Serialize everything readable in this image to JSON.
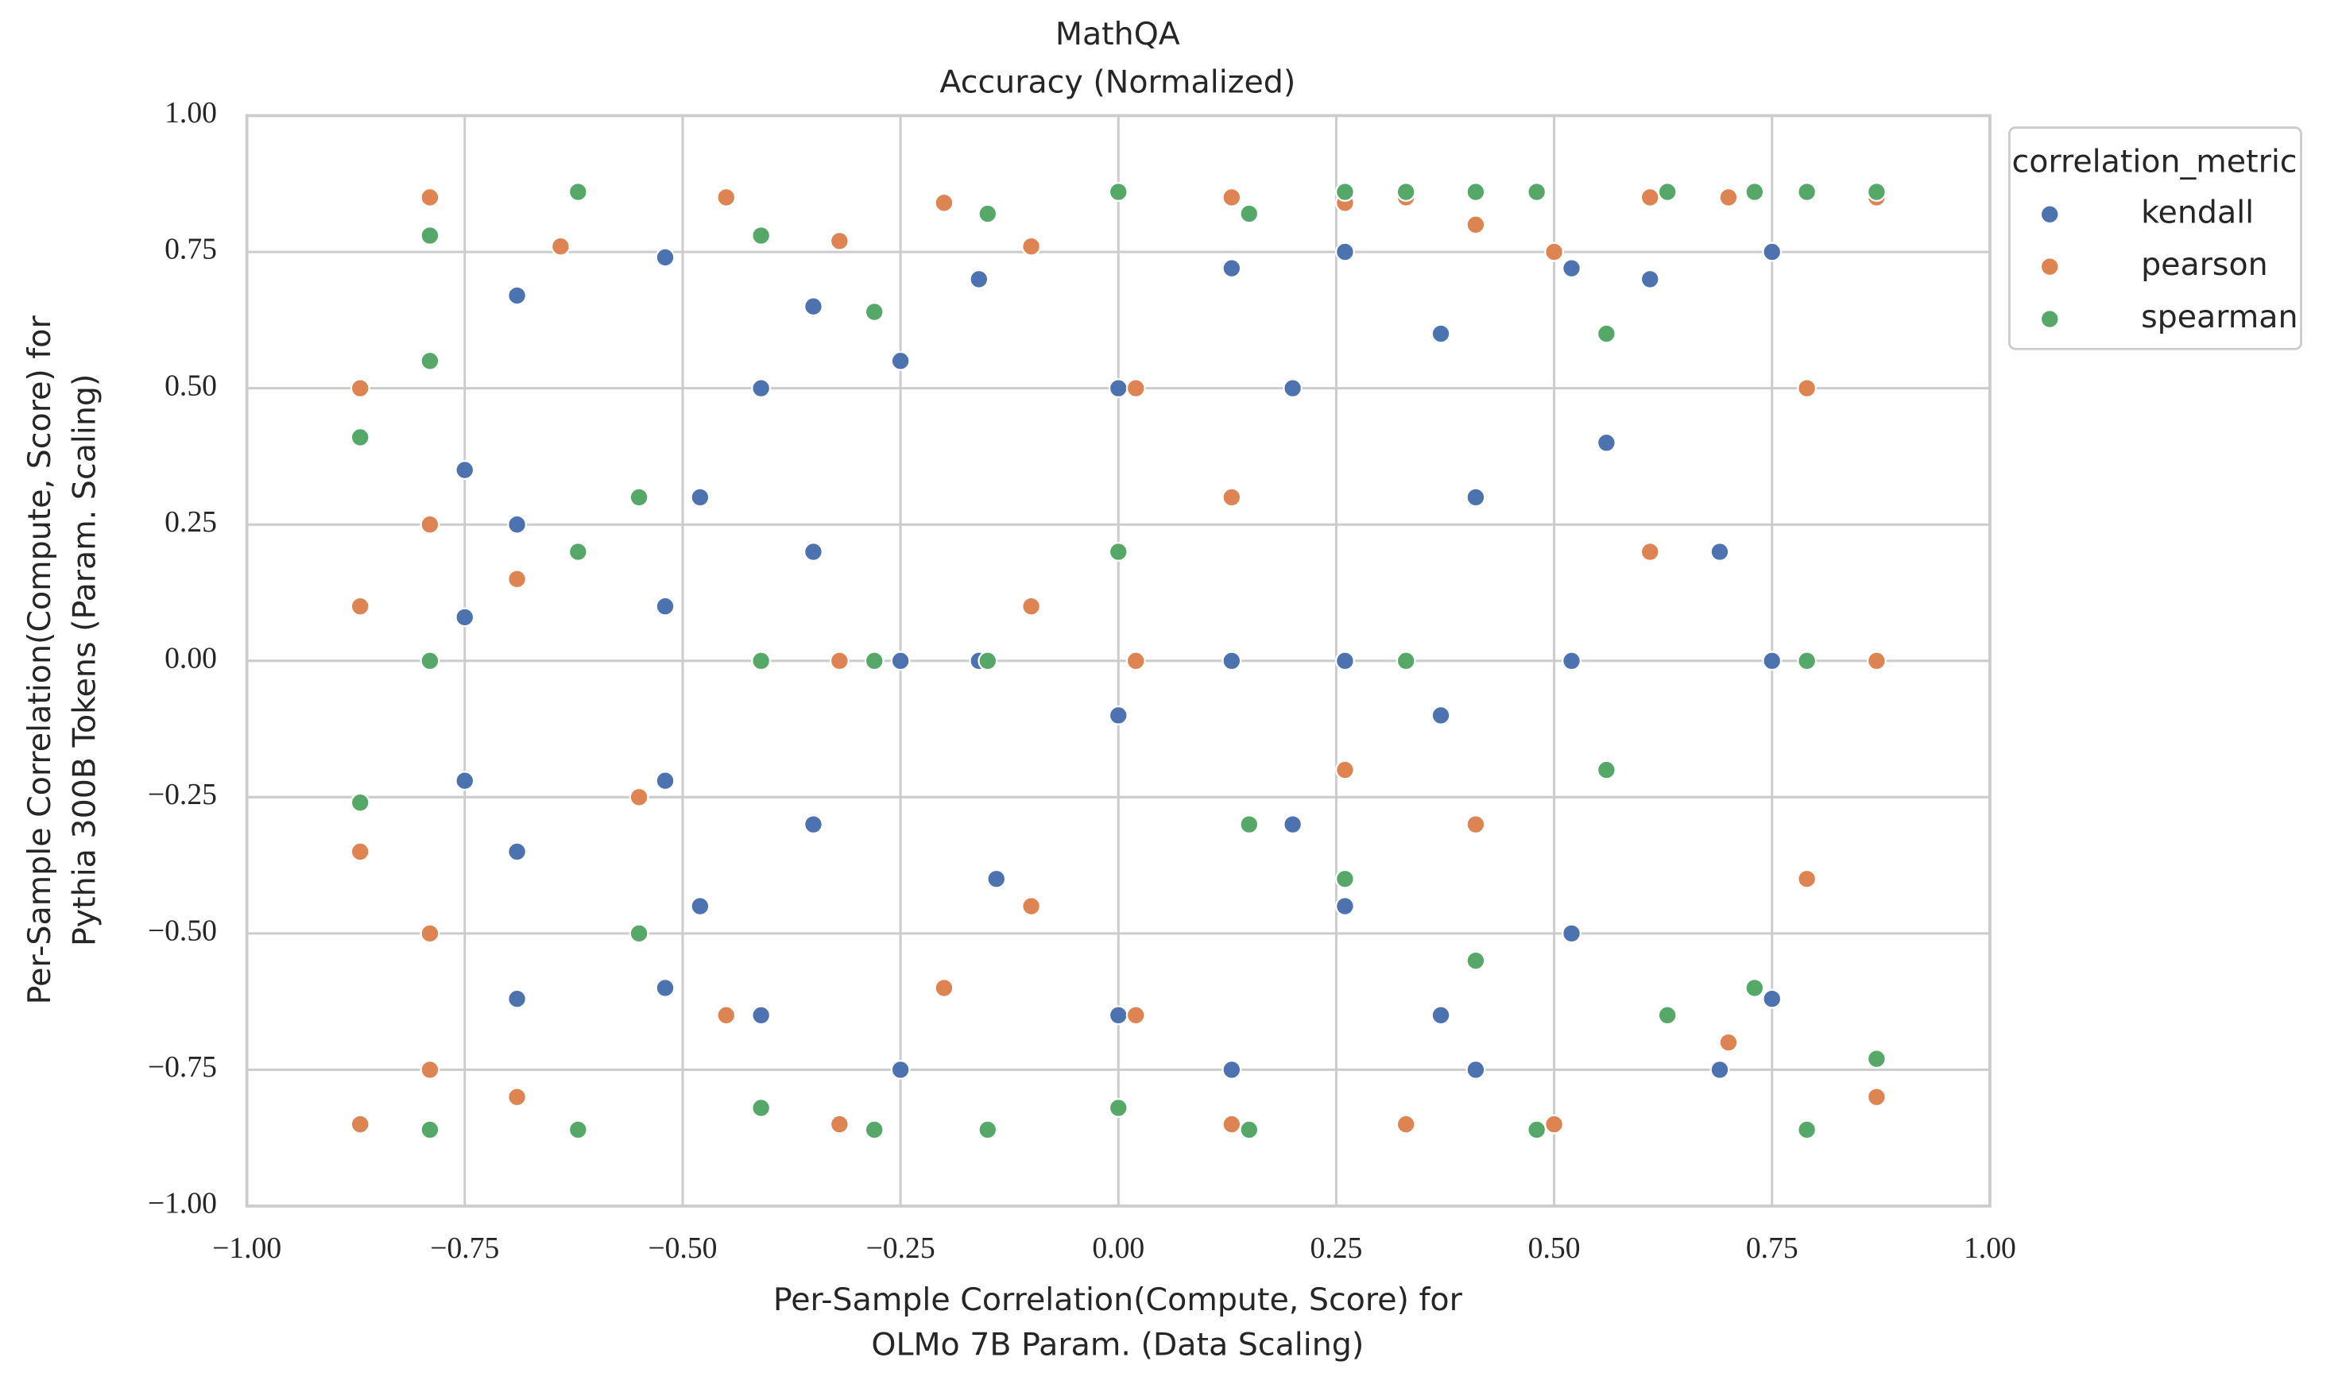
{
  "chart_data": {
    "type": "scatter",
    "title": [
      "MathQA",
      "Accuracy (Normalized)"
    ],
    "x_label": [
      "Per-Sample Correlation(Compute, Score) for",
      "OLMo 7B Param. (Data Scaling)"
    ],
    "y_label": [
      "Per-Sample Correlation(Compute, Score) for",
      "Pythia 300B Tokens (Param. Scaling)"
    ],
    "xlim": [
      -1,
      1
    ],
    "ylim": [
      -1,
      1
    ],
    "xticks": [
      {
        "value": -1,
        "label": "−1.00"
      },
      {
        "value": -0.75,
        "label": "−0.75"
      },
      {
        "value": -0.5,
        "label": "−0.50"
      },
      {
        "value": -0.25,
        "label": "−0.25"
      },
      {
        "value": 0,
        "label": "0.00"
      },
      {
        "value": 0.25,
        "label": "0.25"
      },
      {
        "value": 0.5,
        "label": "0.50"
      },
      {
        "value": 0.75,
        "label": "0.75"
      },
      {
        "value": 1,
        "label": "1.00"
      }
    ],
    "yticks": [
      {
        "value": -1,
        "label": "−1.00"
      },
      {
        "value": -0.75,
        "label": "−0.75"
      },
      {
        "value": -0.5,
        "label": "−0.50"
      },
      {
        "value": -0.25,
        "label": "−0.25"
      },
      {
        "value": 0,
        "label": "0.00"
      },
      {
        "value": 0.25,
        "label": "0.25"
      },
      {
        "value": 0.5,
        "label": "0.50"
      },
      {
        "value": 0.75,
        "label": "0.75"
      },
      {
        "value": 1,
        "label": "1.00"
      }
    ],
    "grid": true,
    "legend": {
      "title": "correlation_metric",
      "loc": "outside upper right"
    },
    "series": [
      {
        "name": "kendall",
        "color": "#4c72b0",
        "x": [
          -0.75,
          -0.75,
          -0.75,
          -0.69,
          -0.69,
          -0.69,
          -0.69,
          -0.52,
          -0.52,
          -0.52,
          -0.52,
          -0.48,
          -0.48,
          -0.41,
          -0.41,
          -0.41,
          -0.35,
          -0.35,
          -0.35,
          -0.25,
          -0.25,
          -0.25,
          -0.16,
          -0.16,
          -0.14,
          0,
          0,
          0,
          0.13,
          0.13,
          0.13,
          0.2,
          0.2,
          0.26,
          0.26,
          0.26,
          0.37,
          0.37,
          0.37,
          0.41,
          0.41,
          0.52,
          0.52,
          0.52,
          0.56,
          0.61,
          0.61,
          0.69,
          0.69,
          0.75,
          0.75,
          0.75
        ],
        "values": [
          0.35,
          0.08,
          -0.22,
          0.67,
          0.25,
          -0.35,
          -0.62,
          0.74,
          0.1,
          -0.22,
          -0.6,
          0.3,
          -0.45,
          0.5,
          0.0,
          -0.65,
          0.65,
          0.2,
          -0.3,
          0.55,
          0.0,
          -0.75,
          0.7,
          0.0,
          -0.4,
          0.5,
          -0.1,
          -0.65,
          0.72,
          0.0,
          -0.75,
          0.5,
          -0.3,
          0.75,
          0.0,
          -0.45,
          0.6,
          -0.1,
          -0.65,
          0.3,
          -0.75,
          0.72,
          0.0,
          -0.5,
          0.4,
          0.7,
          0.2,
          0.2,
          -0.75,
          0.75,
          0.0,
          -0.62
        ]
      },
      {
        "name": "pearson",
        "color": "#dd8452",
        "x": [
          -0.87,
          -0.87,
          -0.87,
          -0.87,
          -0.79,
          -0.79,
          -0.79,
          -0.79,
          -0.69,
          -0.69,
          -0.64,
          -0.55,
          -0.55,
          -0.45,
          -0.45,
          -0.32,
          -0.32,
          -0.32,
          -0.2,
          -0.2,
          -0.1,
          -0.1,
          -0.1,
          0.02,
          0.02,
          0.02,
          0.13,
          0.13,
          0.13,
          0.26,
          0.26,
          0.33,
          0.33,
          0.41,
          0.41,
          0.5,
          0.5,
          0.61,
          0.61,
          0.7,
          0.7,
          0.79,
          0.79,
          0.87,
          0.87,
          0.87
        ],
        "values": [
          0.5,
          0.1,
          -0.35,
          -0.85,
          0.85,
          0.25,
          -0.5,
          -0.75,
          0.15,
          -0.8,
          0.76,
          0.3,
          -0.25,
          0.85,
          -0.65,
          0.77,
          0.0,
          -0.85,
          0.84,
          -0.6,
          0.76,
          0.1,
          -0.45,
          0.5,
          0.0,
          -0.65,
          0.85,
          0.3,
          -0.85,
          0.84,
          -0.2,
          0.85,
          -0.85,
          0.8,
          -0.3,
          0.75,
          -0.85,
          0.85,
          0.2,
          0.85,
          -0.7,
          -0.4,
          0.5,
          0.85,
          -0.8,
          0.0
        ]
      },
      {
        "name": "spearman",
        "color": "#55a868",
        "x": [
          -0.87,
          -0.87,
          -0.79,
          -0.79,
          -0.79,
          -0.79,
          -0.62,
          -0.62,
          -0.62,
          -0.55,
          -0.55,
          -0.41,
          -0.41,
          -0.41,
          -0.28,
          -0.28,
          -0.28,
          -0.15,
          -0.15,
          -0.15,
          0,
          0,
          0,
          0.15,
          0.15,
          0.15,
          0.26,
          0.26,
          0.33,
          0.33,
          0.41,
          0.41,
          0.48,
          0.48,
          0.56,
          0.56,
          0.63,
          0.63,
          0.73,
          0.73,
          0.79,
          0.79,
          0.79,
          0.87,
          0.87
        ],
        "values": [
          0.41,
          -0.26,
          0.78,
          0.55,
          0.0,
          -0.86,
          0.86,
          0.2,
          -0.86,
          0.3,
          -0.5,
          0.78,
          0.0,
          -0.82,
          0.64,
          0.0,
          -0.86,
          0.82,
          0.0,
          -0.86,
          0.86,
          0.2,
          -0.82,
          0.82,
          -0.3,
          -0.86,
          0.86,
          -0.4,
          0.86,
          0.0,
          0.86,
          -0.55,
          0.86,
          -0.86,
          0.6,
          -0.2,
          0.86,
          -0.65,
          0.86,
          -0.6,
          0.86,
          0.0,
          -0.86,
          0.86,
          -0.73
        ]
      }
    ]
  }
}
